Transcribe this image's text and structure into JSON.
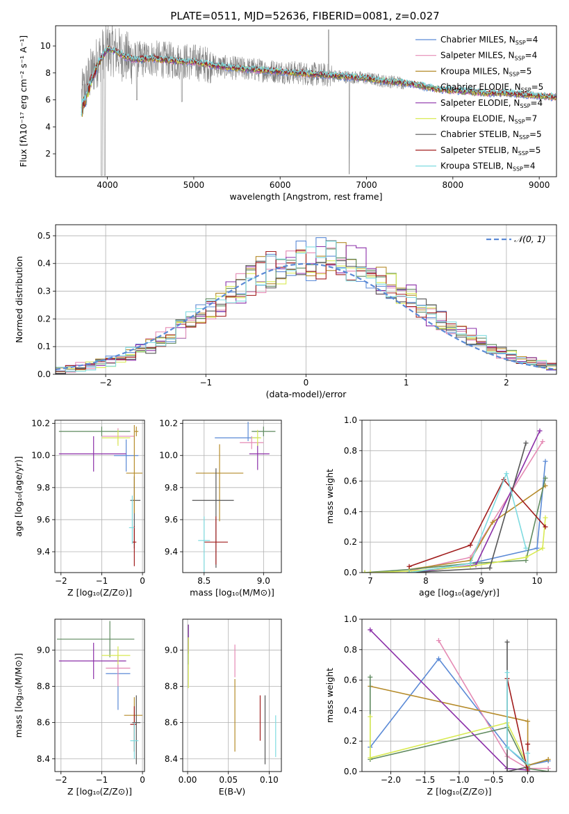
{
  "figure_title": "PLATE=0511, MJD=52636, FIBERID=0081, z=0.027",
  "models": [
    {
      "name": "Chabrier MILES",
      "nssp": 4,
      "color": "#5b8ad6"
    },
    {
      "name": "Salpeter MILES",
      "nssp": 4,
      "color": "#e58ab4"
    },
    {
      "name": "Kroupa MILES",
      "nssp": 5,
      "color": "#b58b2a"
    },
    {
      "name": "Chabrier ELODIE",
      "nssp": 5,
      "color": "#5f8a5f"
    },
    {
      "name": "Salpeter ELODIE",
      "nssp": 4,
      "color": "#8b2fa8"
    },
    {
      "name": "Kroupa ELODIE",
      "nssp": 7,
      "color": "#d8ea52"
    },
    {
      "name": "Chabrier STELIB",
      "nssp": 5,
      "color": "#555555"
    },
    {
      "name": "Salpeter STELIB",
      "nssp": 5,
      "color": "#a01c1c"
    },
    {
      "name": "Kroupa STELIB",
      "nssp": 4,
      "color": "#7fdbe0"
    }
  ],
  "chart_data": [
    {
      "id": "spectrum",
      "type": "line",
      "xlabel": "wavelength [Angstrom, rest frame]",
      "ylabel": "Flux [fλ10⁻¹⁷ erg cm⁻² s⁻¹ A⁻¹]",
      "xlim": [
        3400,
        9200
      ],
      "ylim": [
        0.3,
        11.5
      ],
      "xticks": [
        4000,
        5000,
        6000,
        7000,
        8000,
        9000
      ],
      "yticks": [
        2,
        4,
        6,
        8,
        10
      ],
      "grid": false,
      "legend": "top-right",
      "continuum": {
        "x": [
          3700,
          3800,
          3900,
          4000,
          4100,
          4200,
          4300,
          4400,
          4500,
          4600,
          4800,
          5000,
          5200,
          5400,
          5600,
          5800,
          6000,
          6200,
          6400,
          6600,
          6800,
          7000,
          7200,
          7400,
          7600,
          7800,
          8000,
          8200,
          8400,
          8600,
          8800,
          9000,
          9200
        ],
        "y": [
          6.2,
          7.8,
          9.1,
          9.8,
          9.6,
          9.2,
          9.0,
          9.0,
          9.1,
          9.0,
          8.9,
          8.8,
          8.6,
          8.4,
          8.3,
          8.2,
          8.1,
          8.0,
          7.9,
          7.8,
          7.7,
          7.6,
          7.4,
          7.3,
          7.1,
          6.8,
          6.7,
          6.6,
          6.5,
          6.5,
          6.4,
          6.3,
          6.2
        ]
      },
      "data_extent": [
        3700,
        7430
      ],
      "model_extent": [
        3700,
        9200
      ]
    },
    {
      "id": "residual-histogram",
      "type": "bar",
      "xlabel": "(data-model)/error",
      "ylabel": "Normed distribution",
      "xlim": [
        -2.5,
        2.5
      ],
      "ylim": [
        0,
        0.54
      ],
      "xticks": [
        -2,
        -1,
        0,
        1,
        2
      ],
      "yticks": [
        0.0,
        0.1,
        0.2,
        0.3,
        0.4,
        0.5
      ],
      "grid": true,
      "legend": "top-right",
      "reference_label": "𝒩(0, 1)",
      "reference_color": "#5b8ad6",
      "bins": 50
    },
    {
      "id": "age-vs-Z",
      "type": "scatter",
      "xlabel": "Z [log₁₀(Z/Z⊙)]",
      "ylabel": "age  [log₁₀(age/yr)]",
      "xlim": [
        -2.15,
        0.05
      ],
      "ylim": [
        9.27,
        10.22
      ],
      "xticks": [
        -2,
        -1,
        0
      ],
      "yticks": [
        9.4,
        9.6,
        9.8,
        10.0,
        10.2
      ],
      "grid": true,
      "points": [
        {
          "model": 0,
          "x": -0.4,
          "y": 10.0,
          "xerr": [
            0.3,
            0.3
          ],
          "yerr": [
            0.1,
            0.1
          ]
        },
        {
          "model": 1,
          "x": -0.6,
          "y": 10.12,
          "xerr": [
            0.4,
            0.4
          ],
          "yerr": [
            0.05,
            0.05
          ]
        },
        {
          "model": 2,
          "x": -0.15,
          "y": 10.15,
          "xerr": [
            0.05,
            0.05
          ],
          "yerr": [
            0.03,
            0.03
          ]
        },
        {
          "model": 3,
          "x": -1.0,
          "y": 10.15,
          "xerr": [
            1.05,
            0.7
          ],
          "yerr": [
            0.03,
            0.03
          ]
        },
        {
          "model": 4,
          "x": -1.2,
          "y": 10.01,
          "xerr": [
            0.85,
            0.8
          ],
          "yerr": [
            0.11,
            0.11
          ]
        },
        {
          "model": 5,
          "x": -0.6,
          "y": 10.11,
          "xerr": [
            0.4,
            0.3
          ],
          "yerr": [
            0.05,
            0.05
          ]
        },
        {
          "model": 6,
          "x": -0.2,
          "y": 9.72,
          "xerr": [
            0.1,
            0.15
          ],
          "yerr": [
            0.3,
            0.15
          ]
        },
        {
          "model": 7,
          "x": -0.2,
          "y": 9.46,
          "xerr": [
            0.05,
            0.05
          ],
          "yerr": [
            0.15,
            0.1
          ]
        },
        {
          "model": 8,
          "x": -0.25,
          "y": 9.55,
          "xerr": [
            0.08,
            0.05
          ],
          "yerr": [
            0.1,
            0.2
          ]
        },
        {
          "model": 2,
          "x": -0.2,
          "y": 9.89,
          "xerr": [
            0.2,
            0.2
          ],
          "yerr": [
            0.25,
            0.3
          ]
        }
      ]
    },
    {
      "id": "age-vs-mass",
      "type": "scatter",
      "xlabel": "mass [log₁₀(M/M⊙)]",
      "ylabel": "",
      "xlim": [
        8.32,
        9.15
      ],
      "ylim": [
        9.27,
        10.22
      ],
      "xticks": [
        8.5,
        9.0
      ],
      "yticks": [
        9.4,
        9.6,
        9.8,
        10.0,
        10.2
      ],
      "grid": true,
      "points": [
        {
          "model": 0,
          "x": 8.87,
          "y": 10.11,
          "xerr": [
            0.28,
            0.1
          ],
          "yerr": [
            0.02,
            0.1
          ]
        },
        {
          "model": 1,
          "x": 8.9,
          "y": 10.08,
          "xerr": [
            0.1,
            0.1
          ],
          "yerr": [
            0.04,
            0.04
          ]
        },
        {
          "model": 2,
          "x": 8.63,
          "y": 9.89,
          "xerr": [
            0.2,
            0.2
          ],
          "yerr": [
            0.3,
            0.18
          ]
        },
        {
          "model": 3,
          "x": 9.0,
          "y": 10.15,
          "xerr": [
            0.1,
            0.1
          ],
          "yerr": [
            0.03,
            0.03
          ]
        },
        {
          "model": 4,
          "x": 8.95,
          "y": 10.01,
          "xerr": [
            0.07,
            0.1
          ],
          "yerr": [
            0.1,
            0.07
          ]
        },
        {
          "model": 5,
          "x": 8.95,
          "y": 10.11,
          "xerr": [
            0.05,
            0.03
          ],
          "yerr": [
            0.05,
            0.05
          ]
        },
        {
          "model": 6,
          "x": 8.6,
          "y": 9.72,
          "xerr": [
            0.2,
            0.15
          ],
          "yerr": [
            0.42,
            0.2
          ]
        },
        {
          "model": 7,
          "x": 8.6,
          "y": 9.46,
          "xerr": [
            0.1,
            0.1
          ],
          "yerr": [
            0.14,
            0.16
          ]
        },
        {
          "model": 8,
          "x": 8.5,
          "y": 9.47,
          "xerr": [
            0.05,
            0.05
          ],
          "yerr": [
            0.2,
            0.15
          ]
        }
      ]
    },
    {
      "id": "mass-weight-vs-age",
      "type": "line",
      "xlabel": "age  [log₁₀(age/yr)]",
      "ylabel": "mass weight",
      "xlim": [
        6.85,
        10.35
      ],
      "ylim": [
        0.0,
        1.0
      ],
      "xticks": [
        7,
        8,
        9,
        10
      ],
      "yticks": [
        0.0,
        0.2,
        0.4,
        0.6,
        0.8,
        1.0
      ],
      "grid": true,
      "series": [
        {
          "model": 0,
          "x": [
            7.7,
            8.8,
            10.0,
            10.15
          ],
          "y": [
            0.0,
            0.06,
            0.16,
            0.73
          ]
        },
        {
          "model": 1,
          "x": [
            7.7,
            8.8,
            10.1
          ],
          "y": [
            0.01,
            0.1,
            0.86
          ]
        },
        {
          "model": 2,
          "x": [
            7.7,
            8.8,
            9.2,
            10.15
          ],
          "y": [
            0.02,
            0.08,
            0.33,
            0.57
          ]
        },
        {
          "model": 3,
          "x": [
            6.9,
            7.7,
            8.8,
            9.8,
            10.15
          ],
          "y": [
            0.0,
            0.02,
            0.06,
            0.08,
            0.62
          ]
        },
        {
          "model": 4,
          "x": [
            7.7,
            8.9,
            10.05
          ],
          "y": [
            0.0,
            0.05,
            0.93
          ]
        },
        {
          "model": 5,
          "x": [
            6.9,
            7.0,
            7.7,
            8.8,
            9.8,
            10.1,
            10.15
          ],
          "y": [
            0.0,
            0.0,
            0.01,
            0.04,
            0.1,
            0.16,
            0.36
          ]
        },
        {
          "model": 6,
          "x": [
            7.7,
            9.15,
            9.8
          ],
          "y": [
            0.0,
            0.03,
            0.85
          ]
        },
        {
          "model": 7,
          "x": [
            7.7,
            8.8,
            9.4,
            10.15
          ],
          "y": [
            0.04,
            0.18,
            0.61,
            0.3
          ]
        },
        {
          "model": 8,
          "x": [
            7.7,
            8.8,
            9.45,
            9.8
          ],
          "y": [
            0.0,
            0.06,
            0.65,
            0.16
          ]
        }
      ]
    },
    {
      "id": "mass-vs-Z",
      "type": "scatter",
      "xlabel": "Z [log₁₀(Z/Z⊙)]",
      "ylabel": "mass [log₁₀(M/M⊙)]",
      "xlim": [
        -2.15,
        0.05
      ],
      "ylim": [
        8.33,
        9.17
      ],
      "xticks": [
        -2,
        -1,
        0
      ],
      "yticks": [
        8.4,
        8.6,
        8.8,
        9.0
      ],
      "grid": true,
      "points": [
        {
          "model": 0,
          "x": -0.6,
          "y": 8.87,
          "xerr": [
            0.3,
            0.3
          ],
          "yerr": [
            0.2,
            0.1
          ]
        },
        {
          "model": 1,
          "x": -0.6,
          "y": 8.9,
          "xerr": [
            0.3,
            0.3
          ],
          "yerr": [
            0.1,
            0.1
          ]
        },
        {
          "model": 2,
          "x": -0.2,
          "y": 8.64,
          "xerr": [
            0.25,
            0.2
          ],
          "yerr": [
            0.2,
            0.1
          ]
        },
        {
          "model": 3,
          "x": -0.8,
          "y": 9.06,
          "xerr": [
            1.3,
            0.6
          ],
          "yerr": [
            0.1,
            0.1
          ]
        },
        {
          "model": 4,
          "x": -1.2,
          "y": 8.94,
          "xerr": [
            0.85,
            0.8
          ],
          "yerr": [
            0.1,
            0.1
          ]
        },
        {
          "model": 5,
          "x": -0.6,
          "y": 8.97,
          "xerr": [
            0.4,
            0.3
          ],
          "yerr": [
            0.05,
            0.05
          ]
        },
        {
          "model": 6,
          "x": -0.15,
          "y": 8.6,
          "xerr": [
            0.1,
            0.1
          ],
          "yerr": [
            0.23,
            0.15
          ]
        },
        {
          "model": 7,
          "x": -0.2,
          "y": 8.59,
          "xerr": [
            0.1,
            0.05
          ],
          "yerr": [
            0.15,
            0.1
          ]
        },
        {
          "model": 8,
          "x": -0.2,
          "y": 8.5,
          "xerr": [
            0.1,
            0.1
          ],
          "yerr": [
            0.1,
            0.1
          ]
        }
      ]
    },
    {
      "id": "mass-vs-EBV",
      "type": "scatter",
      "xlabel": "E(B-V)",
      "ylabel": "",
      "xlim": [
        -0.006,
        0.115
      ],
      "ylim": [
        8.33,
        9.17
      ],
      "xticks": [
        0.0,
        0.05,
        0.1
      ],
      "yticks": [
        8.4,
        8.6,
        8.8,
        9.0
      ],
      "grid": true,
      "points": [
        {
          "model": 0,
          "x": 0.001,
          "y": 9.0,
          "xerr": [
            0,
            0
          ],
          "yerr": [
            0.08,
            0.08
          ]
        },
        {
          "model": 1,
          "x": 0.058,
          "y": 8.9,
          "xerr": [
            0,
            0
          ],
          "yerr": [
            0.05,
            0.13
          ]
        },
        {
          "model": 2,
          "x": 0.058,
          "y": 8.64,
          "xerr": [
            0,
            0
          ],
          "yerr": [
            0.2,
            0.2
          ]
        },
        {
          "model": 3,
          "x": 0.001,
          "y": 9.06,
          "xerr": [
            0,
            0
          ],
          "yerr": [
            0.08,
            0.08
          ]
        },
        {
          "model": 4,
          "x": 0.001,
          "y": 9.05,
          "xerr": [
            0,
            0
          ],
          "yerr": [
            0.06,
            0.09
          ]
        },
        {
          "model": 5,
          "x": 0.001,
          "y": 8.97,
          "xerr": [
            0,
            0
          ],
          "yerr": [
            0.18,
            0.1
          ]
        },
        {
          "model": 6,
          "x": 0.095,
          "y": 8.6,
          "xerr": [
            0,
            0
          ],
          "yerr": [
            0.23,
            0.15
          ]
        },
        {
          "model": 7,
          "x": 0.089,
          "y": 8.64,
          "xerr": [
            0,
            0
          ],
          "yerr": [
            0.14,
            0.11
          ]
        },
        {
          "model": 8,
          "x": 0.108,
          "y": 8.52,
          "xerr": [
            0,
            0
          ],
          "yerr": [
            0.11,
            0.12
          ]
        }
      ]
    },
    {
      "id": "mass-weight-vs-Z",
      "type": "line",
      "xlabel": "Z [log₁₀(Z/Z⊙)]",
      "ylabel": "mass weight",
      "xlim": [
        -2.42,
        0.42
      ],
      "ylim": [
        0.0,
        1.0
      ],
      "xticks": [
        -2.0,
        -1.5,
        -1.0,
        -0.5,
        0.0
      ],
      "yticks": [
        0.0,
        0.2,
        0.4,
        0.6,
        0.8,
        1.0
      ],
      "grid": true,
      "series": [
        {
          "model": 0,
          "x": [
            -2.3,
            -1.3,
            -0.3,
            0.0,
            0.3
          ],
          "y": [
            0.16,
            0.74,
            0.16,
            0.04,
            0.07
          ]
        },
        {
          "model": 1,
          "x": [
            -1.3,
            -0.3,
            0.0,
            0.3
          ],
          "y": [
            0.86,
            0.1,
            0.02,
            0.02
          ]
        },
        {
          "model": 2,
          "x": [
            -2.3,
            0.0,
            0.0,
            0.3
          ],
          "y": [
            0.56,
            0.33,
            0.04,
            0.08
          ]
        },
        {
          "model": 3,
          "x": [
            -2.3,
            -2.3,
            -0.3,
            0.0,
            0.3
          ],
          "y": [
            0.62,
            0.08,
            0.29,
            0.02,
            0.0
          ]
        },
        {
          "model": 4,
          "x": [
            -2.3,
            -0.3,
            0.0
          ],
          "y": [
            0.93,
            0.02,
            0.01
          ]
        },
        {
          "model": 5,
          "x": [
            -2.3,
            -2.3,
            -0.3,
            0.0
          ],
          "y": [
            0.36,
            0.09,
            0.32,
            0.04
          ]
        },
        {
          "model": 6,
          "x": [
            -0.3,
            -0.3,
            0.0
          ],
          "y": [
            0.85,
            0.0,
            0.03
          ]
        },
        {
          "model": 7,
          "x": [
            -0.3,
            0.0,
            0.0
          ],
          "y": [
            0.61,
            0.0,
            0.18
          ]
        },
        {
          "model": 8,
          "x": [
            -0.3,
            -0.3,
            0.0,
            0.0
          ],
          "y": [
            0.65,
            0.16,
            0.05,
            0.12
          ]
        }
      ]
    }
  ]
}
